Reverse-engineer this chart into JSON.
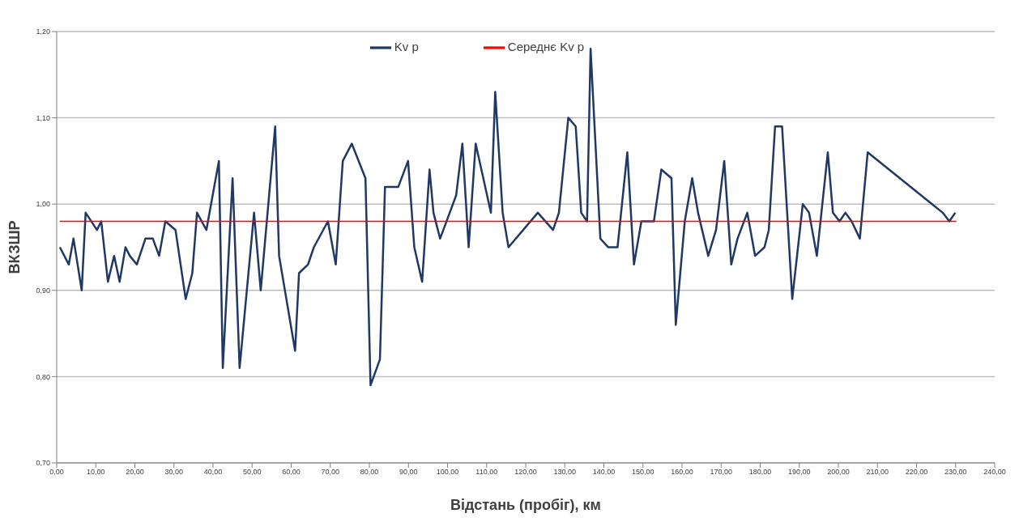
{
  "chart_data": {
    "type": "line",
    "xlabel": "Відстань (пробіг), км",
    "ylabel": "ВКЗШР",
    "xlim": [
      0,
      240
    ],
    "xticks": [
      {
        "value": 0,
        "label": "0,00"
      },
      {
        "value": 10,
        "label": "10,00"
      },
      {
        "value": 20,
        "label": "20,00"
      },
      {
        "value": 30,
        "label": "30,00"
      },
      {
        "value": 40,
        "label": "40,00"
      },
      {
        "value": 50,
        "label": "50,00"
      },
      {
        "value": 60,
        "label": "60,00"
      },
      {
        "value": 70,
        "label": "70,00"
      },
      {
        "value": 80,
        "label": "80,00"
      },
      {
        "value": 90,
        "label": "90,00"
      },
      {
        "value": 100,
        "label": "100,00"
      },
      {
        "value": 110,
        "label": "110,00"
      },
      {
        "value": 120,
        "label": "120,00"
      },
      {
        "value": 130,
        "label": "130,00"
      },
      {
        "value": 140,
        "label": "140,00"
      },
      {
        "value": 150,
        "label": "150,00"
      },
      {
        "value": 160,
        "label": "160,00"
      },
      {
        "value": 170,
        "label": "170,00"
      },
      {
        "value": 180,
        "label": "180,00"
      },
      {
        "value": 190,
        "label": "190,00"
      },
      {
        "value": 200,
        "label": "200,00"
      },
      {
        "value": 210,
        "label": "210,00"
      },
      {
        "value": 220,
        "label": "220,00"
      },
      {
        "value": 230,
        "label": "230,00"
      },
      {
        "value": 240,
        "label": "240,00"
      }
    ],
    "ylim": [
      0.7,
      1.2
    ],
    "yticks": [
      {
        "value": 0.7,
        "label": "0,70"
      },
      {
        "value": 0.8,
        "label": "0,80"
      },
      {
        "value": 0.9,
        "label": "0,90"
      },
      {
        "value": 1.0,
        "label": "1,00"
      },
      {
        "value": 1.1,
        "label": "1,10"
      },
      {
        "value": 1.2,
        "label": "1,20"
      }
    ],
    "grid": "y",
    "legend": "top",
    "marker": "none",
    "line_style": "solid",
    "series": [
      {
        "name": "Kv p",
        "color": "#1f3864",
        "x": [
          0.8,
          3.1,
          4.3,
          6.4,
          7.4,
          10.3,
          11.4,
          13.1,
          14.7,
          16.1,
          17.6,
          18.7,
          20.5,
          22.7,
          24.6,
          26.2,
          27.8,
          30.4,
          33.0,
          34.7,
          35.9,
          38.3,
          41.5,
          42.5,
          45.0,
          46.8,
          50.5,
          52.2,
          55.9,
          56.9,
          61.0,
          62.0,
          64.3,
          65.8,
          69.4,
          71.4,
          73.2,
          75.5,
          79.0,
          80.3,
          82.7,
          84.0,
          87.4,
          89.9,
          91.5,
          93.5,
          95.4,
          96.4,
          98.1,
          102.2,
          103.8,
          105.4,
          107.2,
          111.1,
          112.2,
          114.1,
          115.6,
          123.1,
          127.0,
          128.5,
          130.9,
          132.8,
          134.2,
          135.7,
          136.6,
          139.1,
          141.1,
          143.5,
          146.0,
          147.7,
          149.6,
          152.8,
          154.7,
          157.3,
          158.4,
          160.7,
          162.6,
          164.1,
          166.7,
          168.7,
          170.8,
          172.6,
          174.2,
          176.7,
          178.7,
          181.1,
          182.2,
          183.8,
          185.6,
          188.2,
          190.9,
          192.5,
          194.5,
          197.3,
          198.6,
          200.3,
          201.8,
          203.4,
          205.5,
          207.5,
          226.7,
          228.4,
          229.9
        ],
        "values": [
          0.95,
          0.93,
          0.96,
          0.9,
          0.99,
          0.97,
          0.98,
          0.91,
          0.94,
          0.91,
          0.95,
          0.94,
          0.93,
          0.96,
          0.96,
          0.94,
          0.98,
          0.97,
          0.89,
          0.92,
          0.99,
          0.97,
          1.05,
          0.81,
          1.03,
          0.81,
          0.99,
          0.9,
          1.09,
          0.94,
          0.83,
          0.92,
          0.93,
          0.95,
          0.98,
          0.93,
          1.05,
          1.07,
          1.03,
          0.79,
          0.82,
          1.02,
          1.02,
          1.05,
          0.95,
          0.91,
          1.04,
          0.99,
          0.96,
          1.01,
          1.07,
          0.95,
          1.07,
          0.99,
          1.13,
          0.99,
          0.95,
          0.99,
          0.97,
          0.99,
          1.1,
          1.09,
          0.99,
          0.98,
          1.18,
          0.96,
          0.95,
          0.95,
          1.06,
          0.93,
          0.98,
          0.98,
          1.04,
          1.03,
          0.86,
          0.98,
          1.03,
          0.99,
          0.94,
          0.97,
          1.05,
          0.93,
          0.96,
          0.99,
          0.94,
          0.95,
          0.97,
          1.09,
          1.09,
          0.89,
          1.0,
          0.99,
          0.94,
          1.06,
          0.99,
          0.98,
          0.99,
          0.98,
          0.96,
          1.06,
          0.99,
          0.98,
          0.99
        ]
      },
      {
        "name": "Середнє Kv p",
        "color": "#ff0000",
        "x": [
          0.8,
          230.2
        ],
        "values": [
          0.98,
          0.98
        ]
      }
    ]
  }
}
